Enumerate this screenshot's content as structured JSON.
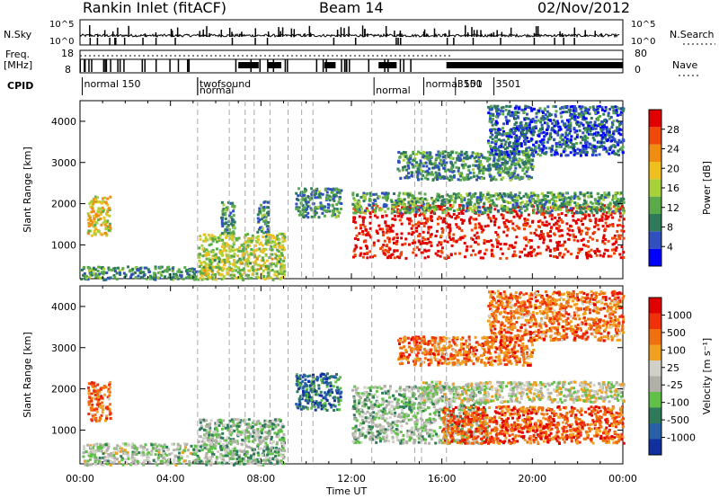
{
  "header": {
    "station": "Rankin Inlet (fitACF)",
    "beam": "Beam 14",
    "date": "02/Nov/2012"
  },
  "top_panels": {
    "nsky_label": "N.Sky",
    "nsky_ticks": [
      "10^5",
      "10^0"
    ],
    "nsearch_label": "N.Search",
    "nsearch_ticks": [
      "10^5",
      "10^0"
    ],
    "freq_label_1": "Freq.",
    "freq_label_2": "[MHz]",
    "freq_ticks": [
      "18",
      "8"
    ],
    "nave_label": "Nave",
    "nave_ticks": [
      "80",
      "0"
    ],
    "cpid_label": "CPID",
    "cpid_segments": [
      {
        "start_hour": 0.1,
        "label": "normal 150"
      },
      {
        "start_hour": 5.2,
        "label": "twofsound"
      },
      {
        "start_hour": 5.2,
        "label": "normal"
      },
      {
        "start_hour": 13.0,
        "label": "normal"
      },
      {
        "start_hour": 15.2,
        "label": "normal 150"
      },
      {
        "start_hour": 16.6,
        "label": "3501"
      },
      {
        "start_hour": 18.3,
        "label": "3501"
      }
    ]
  },
  "chart_data": [
    {
      "type": "heatmap",
      "panel": "power",
      "ylabel": "Slant Range [km]",
      "ylim": [
        180,
        4500
      ],
      "yticks": [
        1000,
        2000,
        3000,
        4000
      ],
      "colorbar_label": "Power [dB]",
      "colorbar_ticks": [
        "4",
        "8",
        "12",
        "16",
        "20",
        "24",
        "28"
      ],
      "colorbar_colors": [
        "#0000ff",
        "#3050c0",
        "#2f7a5a",
        "#5aaa4a",
        "#a8d038",
        "#f0c020",
        "#f08c10",
        "#f04808",
        "#e00000"
      ],
      "echo_regions": [
        {
          "t0": 0.0,
          "t1": 5.2,
          "r0": 180,
          "r1": 500,
          "level": 0.3
        },
        {
          "t0": 0.3,
          "t1": 1.3,
          "r0": 1250,
          "r1": 2200,
          "level": 0.6
        },
        {
          "t0": 5.2,
          "t1": 9.0,
          "r0": 180,
          "r1": 1300,
          "level": 0.5
        },
        {
          "t0": 6.2,
          "t1": 6.8,
          "r0": 1300,
          "r1": 2100,
          "level": 0.3
        },
        {
          "t0": 7.8,
          "t1": 8.3,
          "r0": 1300,
          "r1": 2100,
          "level": 0.3
        },
        {
          "t0": 9.5,
          "t1": 11.5,
          "r0": 1700,
          "r1": 2400,
          "level": 0.3
        },
        {
          "t0": 12.0,
          "t1": 24.0,
          "r0": 700,
          "r1": 2000,
          "level": 0.95
        },
        {
          "t0": 12.0,
          "t1": 24.0,
          "r0": 1800,
          "r1": 2300,
          "level": 0.35
        },
        {
          "t0": 14.0,
          "t1": 20.0,
          "r0": 2600,
          "r1": 3300,
          "level": 0.3
        },
        {
          "t0": 18.0,
          "t1": 24.0,
          "r0": 3200,
          "r1": 4400,
          "level": 0.2
        }
      ]
    },
    {
      "type": "heatmap",
      "panel": "velocity",
      "xlabel": "Time UT",
      "ylabel": "Slant Range [km]",
      "ylim": [
        180,
        4500
      ],
      "yticks": [
        1000,
        2000,
        3000,
        4000
      ],
      "xticks": [
        "00:00",
        "04:00",
        "08:00",
        "12:00",
        "16:00",
        "20:00",
        "00:00"
      ],
      "colorbar_label": "Velocity [m s⁻¹]",
      "colorbar_ticks": [
        "1000",
        "500",
        "100",
        "25",
        "-25",
        "-100",
        "-500",
        "-1000"
      ],
      "colorbar_colors": [
        "#1030a0",
        "#2860a8",
        "#2f7a5a",
        "#60c048",
        "#b0b0a8",
        "#d0d0c8",
        "#f0a020",
        "#f07010",
        "#f03008",
        "#e00000"
      ],
      "echo_regions": [
        {
          "t0": 0.0,
          "t1": 5.2,
          "r0": 180,
          "r1": 700,
          "level": 0.45
        },
        {
          "t0": 0.3,
          "t1": 1.3,
          "r0": 1250,
          "r1": 2200,
          "level": 0.75
        },
        {
          "t0": 5.2,
          "t1": 9.0,
          "r0": 180,
          "r1": 1300,
          "level": 0.4
        },
        {
          "t0": 9.5,
          "t1": 11.5,
          "r0": 1500,
          "r1": 2400,
          "level": 0.2
        },
        {
          "t0": 12.0,
          "t1": 18.0,
          "r0": 700,
          "r1": 2100,
          "level": 0.4
        },
        {
          "t0": 16.0,
          "t1": 24.0,
          "r0": 700,
          "r1": 1600,
          "level": 0.8
        },
        {
          "t0": 15.0,
          "t1": 24.0,
          "r0": 1700,
          "r1": 2200,
          "level": 0.5
        },
        {
          "t0": 14.0,
          "t1": 20.0,
          "r0": 2600,
          "r1": 3300,
          "level": 0.75
        },
        {
          "t0": 18.0,
          "t1": 24.0,
          "r0": 3200,
          "r1": 4400,
          "level": 0.75
        }
      ]
    }
  ],
  "time_axis": {
    "xlim_hours": [
      0,
      24
    ],
    "mode_change_hours": [
      5.2,
      6.6,
      7.3,
      7.7,
      8.4,
      9.2,
      9.8,
      10.3,
      12.9,
      14.8,
      15.1,
      16.2
    ]
  }
}
